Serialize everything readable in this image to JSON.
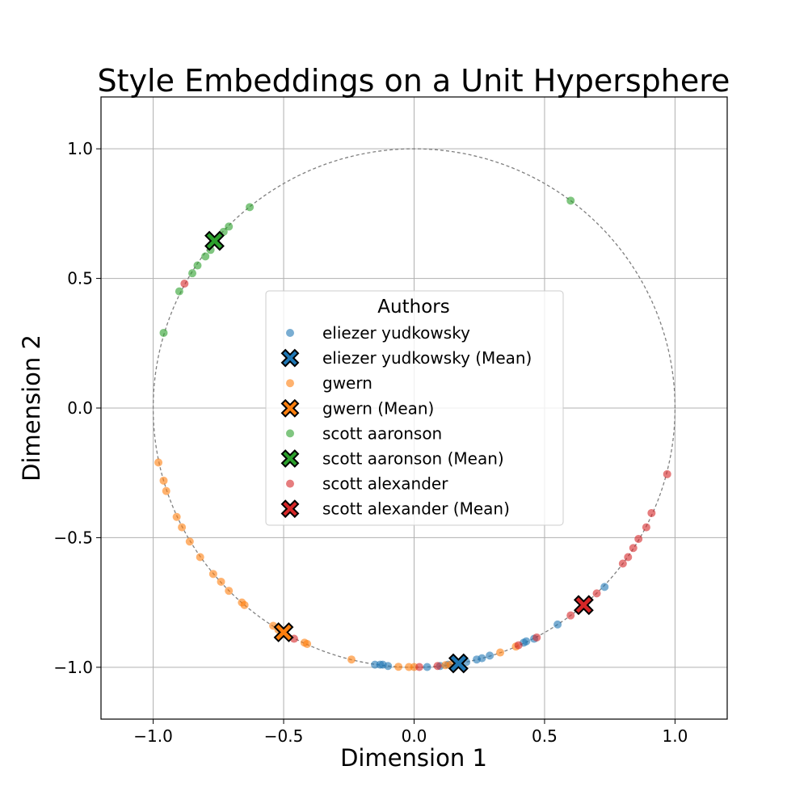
{
  "chart_data": {
    "type": "scatter",
    "title": "Style Embeddings on a Unit Hypersphere",
    "xlabel": "Dimension 1",
    "ylabel": "Dimension 2",
    "xlim": [
      -1.2,
      1.2
    ],
    "ylim": [
      -1.2,
      1.2
    ],
    "x_ticks": [
      -1.0,
      -0.5,
      0.0,
      0.5,
      1.0
    ],
    "y_ticks": [
      -1.0,
      -0.5,
      0.0,
      0.5,
      1.0
    ],
    "x_tick_labels": [
      "−1.0",
      "−0.5",
      "0.0",
      "0.5",
      "1.0"
    ],
    "y_tick_labels": [
      "−1.0",
      "−0.5",
      "0.0",
      "0.5",
      "1.0"
    ],
    "grid": true,
    "unit_circle": true,
    "legend": {
      "title": "Authors",
      "location": "center"
    },
    "series": [
      {
        "name": "eliezer yudkowsky",
        "color": "#1f77b4",
        "points": [
          [
            -0.15,
            -0.99
          ],
          [
            -0.13,
            -0.99
          ],
          [
            -0.12,
            -0.99
          ],
          [
            -0.1,
            -0.995
          ],
          [
            0.05,
            -0.999
          ],
          [
            0.1,
            -0.995
          ],
          [
            0.13,
            -0.99
          ],
          [
            0.2,
            -0.98
          ],
          [
            0.24,
            -0.97
          ],
          [
            0.26,
            -0.965
          ],
          [
            0.29,
            -0.955
          ],
          [
            0.42,
            -0.905
          ],
          [
            0.43,
            -0.9
          ],
          [
            0.46,
            -0.89
          ],
          [
            0.55,
            -0.835
          ],
          [
            0.73,
            -0.69
          ]
        ],
        "mean": [
          0.17,
          -0.985
        ]
      },
      {
        "name": "gwern",
        "color": "#ff7f0e",
        "points": [
          [
            -0.98,
            -0.21
          ],
          [
            -0.96,
            -0.28
          ],
          [
            -0.95,
            -0.32
          ],
          [
            -0.91,
            -0.42
          ],
          [
            -0.89,
            -0.46
          ],
          [
            -0.86,
            -0.515
          ],
          [
            -0.82,
            -0.575
          ],
          [
            -0.77,
            -0.64
          ],
          [
            -0.74,
            -0.67
          ],
          [
            -0.71,
            -0.705
          ],
          [
            -0.66,
            -0.75
          ],
          [
            -0.65,
            -0.76
          ],
          [
            -0.54,
            -0.84
          ],
          [
            -0.52,
            -0.855
          ],
          [
            -0.42,
            -0.905
          ],
          [
            -0.41,
            -0.91
          ],
          [
            -0.24,
            -0.97
          ],
          [
            -0.06,
            -0.998
          ],
          [
            -0.02,
            -0.999
          ],
          [
            0.0,
            -0.999
          ],
          [
            0.12,
            -0.992
          ],
          [
            0.14,
            -0.99
          ],
          [
            0.33,
            -0.943
          ],
          [
            0.39,
            -0.92
          ]
        ],
        "mean": [
          -0.5,
          -0.865
        ]
      },
      {
        "name": "scott aaronson",
        "color": "#2ca02c",
        "points": [
          [
            -0.96,
            0.29
          ],
          [
            -0.9,
            0.45
          ],
          [
            -0.85,
            0.52
          ],
          [
            -0.83,
            0.55
          ],
          [
            -0.8,
            0.585
          ],
          [
            -0.78,
            0.61
          ],
          [
            -0.73,
            0.68
          ],
          [
            -0.71,
            0.7
          ],
          [
            -0.63,
            0.775
          ],
          [
            0.6,
            0.8
          ]
        ],
        "mean": [
          -0.765,
          0.645
        ]
      },
      {
        "name": "scott alexander",
        "color": "#d62728",
        "points": [
          [
            -0.88,
            0.48
          ],
          [
            -0.46,
            -0.89
          ],
          [
            0.02,
            -0.999
          ],
          [
            0.09,
            -0.995
          ],
          [
            0.4,
            -0.915
          ],
          [
            0.47,
            -0.885
          ],
          [
            0.6,
            -0.8
          ],
          [
            0.7,
            -0.715
          ],
          [
            0.8,
            -0.6
          ],
          [
            0.82,
            -0.575
          ],
          [
            0.84,
            -0.54
          ],
          [
            0.86,
            -0.505
          ],
          [
            0.89,
            -0.46
          ],
          [
            0.91,
            -0.405
          ],
          [
            0.97,
            -0.255
          ]
        ],
        "mean": [
          0.65,
          -0.76
        ]
      }
    ],
    "legend_entries": [
      "eliezer yudkowsky",
      "eliezer yudkowsky (Mean)",
      "gwern",
      "gwern (Mean)",
      "scott aaronson",
      "scott aaronson (Mean)",
      "scott alexander",
      "scott alexander (Mean)"
    ]
  }
}
